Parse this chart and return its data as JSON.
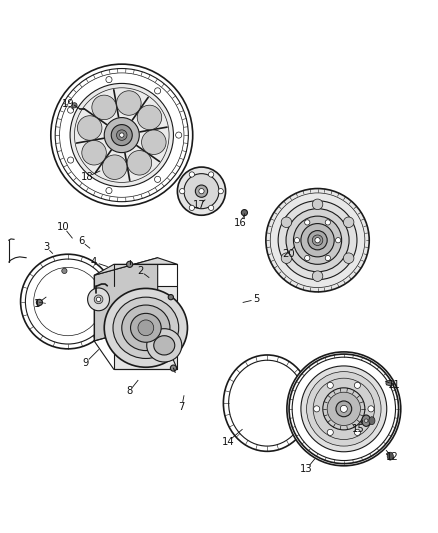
{
  "bg": "#ffffff",
  "lc": "#1a1a1a",
  "fig_w": 4.38,
  "fig_h": 5.33,
  "labels": [
    [
      1,
      0.085,
      0.415,
      0.105,
      0.43
    ],
    [
      2,
      0.32,
      0.49,
      0.34,
      0.475
    ],
    [
      3,
      0.105,
      0.545,
      0.12,
      0.53
    ],
    [
      4,
      0.215,
      0.51,
      0.245,
      0.5
    ],
    [
      5,
      0.585,
      0.425,
      0.555,
      0.418
    ],
    [
      6,
      0.185,
      0.558,
      0.205,
      0.542
    ],
    [
      7,
      0.415,
      0.18,
      0.42,
      0.205
    ],
    [
      8,
      0.295,
      0.215,
      0.315,
      0.24
    ],
    [
      9,
      0.195,
      0.28,
      0.225,
      0.31
    ],
    [
      10,
      0.145,
      0.59,
      0.165,
      0.565
    ],
    [
      11,
      0.9,
      0.23,
      0.88,
      0.238
    ],
    [
      12,
      0.895,
      0.065,
      0.882,
      0.08
    ],
    [
      13,
      0.7,
      0.038,
      0.718,
      0.06
    ],
    [
      14,
      0.52,
      0.1,
      0.553,
      0.128
    ],
    [
      15,
      0.818,
      0.13,
      0.828,
      0.148
    ],
    [
      16,
      0.548,
      0.6,
      0.558,
      0.617
    ],
    [
      17,
      0.455,
      0.64,
      0.468,
      0.652
    ],
    [
      18,
      0.2,
      0.705,
      0.228,
      0.718
    ],
    [
      19,
      0.155,
      0.87,
      0.168,
      0.858
    ],
    [
      20,
      0.658,
      0.528,
      0.672,
      0.545
    ]
  ]
}
